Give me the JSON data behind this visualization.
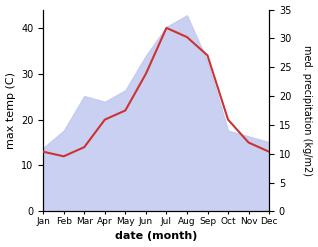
{
  "months": [
    "Jan",
    "Feb",
    "Mar",
    "Apr",
    "May",
    "Jun",
    "Jul",
    "Aug",
    "Sep",
    "Oct",
    "Nov",
    "Dec"
  ],
  "max_temp_C": [
    13,
    12,
    14,
    20,
    22,
    30,
    40,
    38,
    34,
    20,
    15,
    13
  ],
  "precipitation_mm": [
    11,
    14,
    20,
    19,
    21,
    27,
    32,
    34,
    26,
    14,
    13,
    12
  ],
  "line_color": "#cc3333",
  "fill_color": "#c0c8f0",
  "temp_ylim": [
    0,
    44
  ],
  "precip_ylim": [
    0,
    35
  ],
  "temp_yticks": [
    0,
    10,
    20,
    30,
    40
  ],
  "precip_yticks": [
    0,
    5,
    10,
    15,
    20,
    25,
    30,
    35
  ],
  "ylabel_left": "max temp (C)",
  "ylabel_right": "med. precipitation (kg/m2)",
  "xlabel": "date (month)"
}
